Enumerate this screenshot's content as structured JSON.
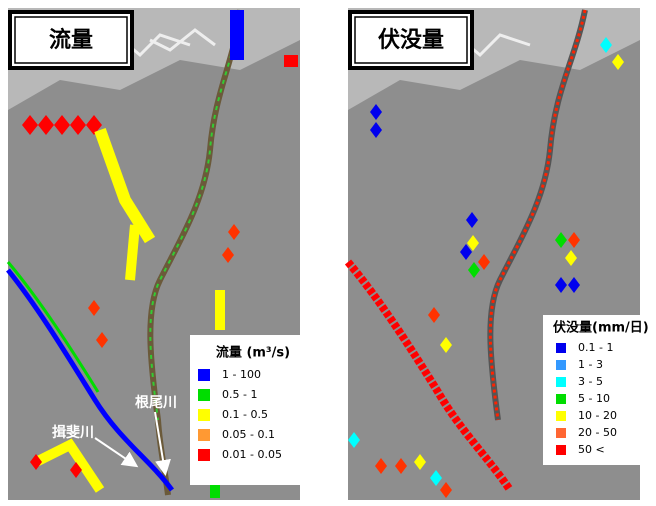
{
  "panels": [
    {
      "title": "流量",
      "legend": {
        "title": "流量 (m³/s)",
        "items": [
          {
            "label": "1 - 100",
            "color": "#0000ff"
          },
          {
            "label": "0.5 - 1",
            "color": "#00dd00"
          },
          {
            "label": "0.1 - 0.5",
            "color": "#ffff00"
          },
          {
            "label": "0.05 - 0.1",
            "color": "#ff9933"
          },
          {
            "label": "0.01 - 0.05",
            "color": "#ff0000"
          }
        ]
      },
      "annotations": [
        "根尾川",
        "揖斐川"
      ]
    },
    {
      "title": "伏没量",
      "legend": {
        "title": "伏没量(mm/日)",
        "items": [
          {
            "label": "0.1 - 1",
            "color": "#0000ee"
          },
          {
            "label": "1 - 3",
            "color": "#3399ff"
          },
          {
            "label": "3 - 5",
            "color": "#00ffff"
          },
          {
            "label": "5 - 10",
            "color": "#00dd00"
          },
          {
            "label": "10 - 20",
            "color": "#ffff00"
          },
          {
            "label": "20 - 50",
            "color": "#ff6633"
          },
          {
            "label": "50 <",
            "color": "#ff0000"
          }
        ]
      }
    }
  ]
}
